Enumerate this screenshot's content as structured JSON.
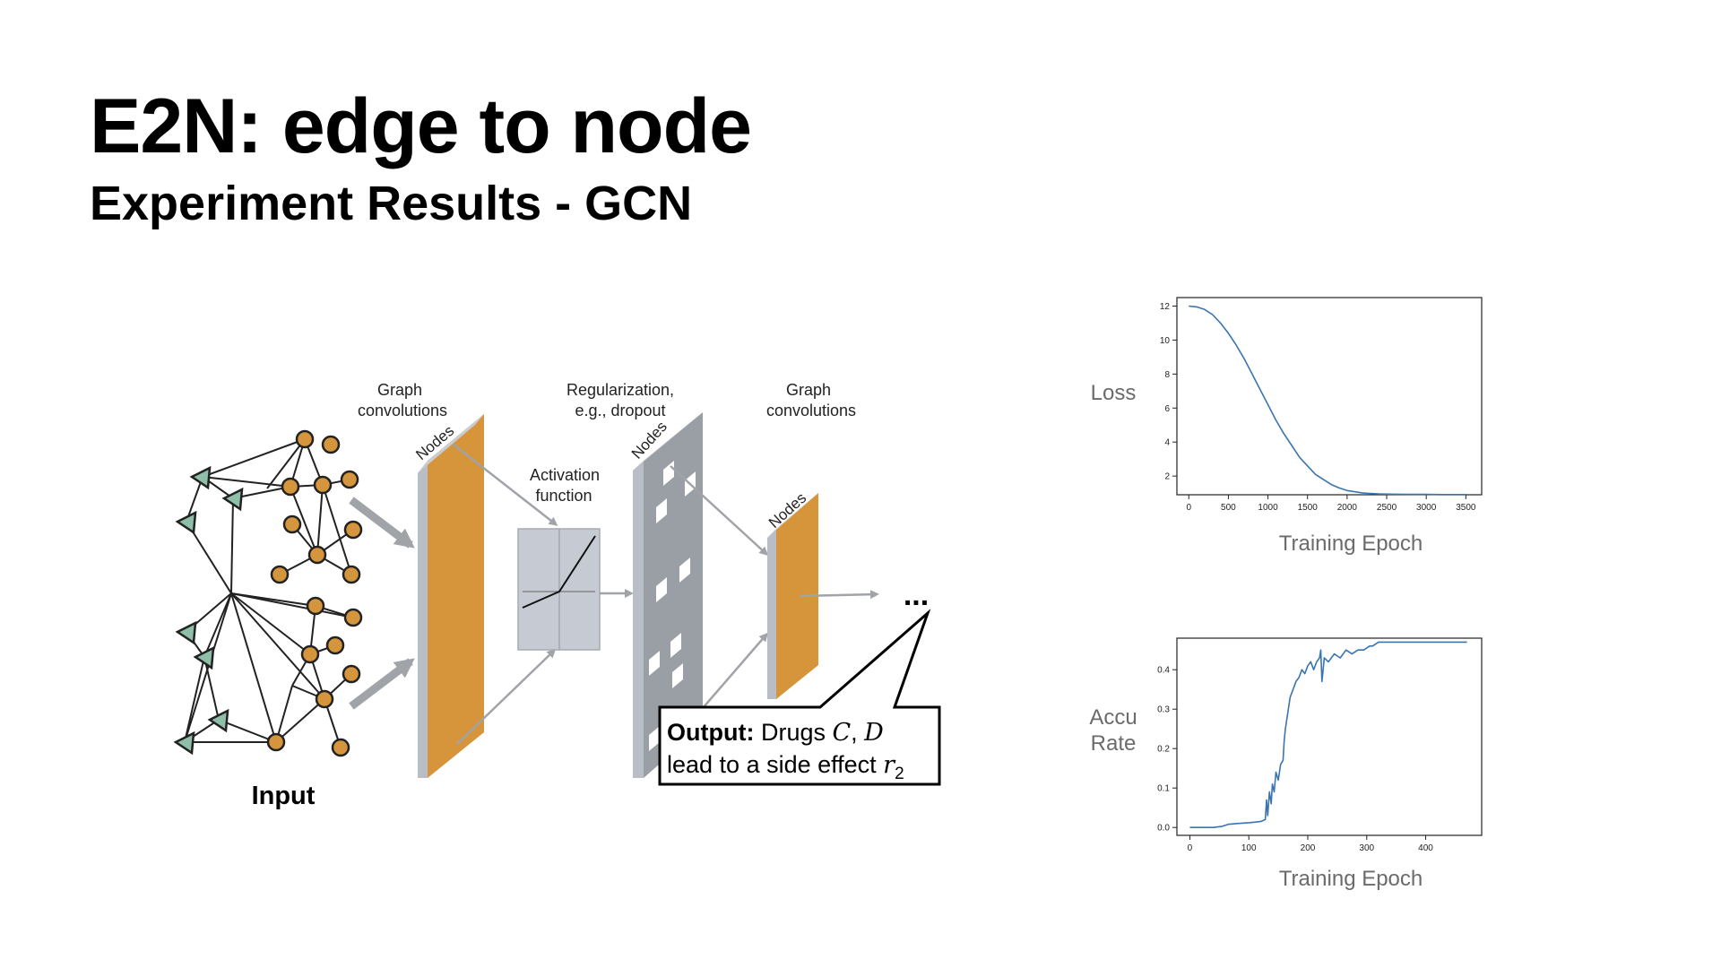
{
  "slide": {
    "title": "E2N: edge to node",
    "subtitle": "Experiment Results - GCN"
  },
  "diagram": {
    "graph_conv_1": [
      "Graph",
      "convolutions"
    ],
    "nodes_label": "Nodes",
    "activation": [
      "Activation",
      "function"
    ],
    "regularization": [
      "Regularization,",
      "e.g., dropout"
    ],
    "graph_conv_2": [
      "Graph",
      "convolutions"
    ],
    "input_label": "Input",
    "ellipsis": "...",
    "output_bold": "Output:",
    "output_line1_rest": " Drugs ",
    "drug_c": "C",
    "comma": ", ",
    "drug_d": "D",
    "output_line2": "lead to a side effect ",
    "effect_symbol": "r",
    "effect_subscript": "2",
    "colors": {
      "node": "#d4953c",
      "node_stroke": "#222222",
      "triangle": "#8fbfa8",
      "panel_orange": "#d6953a",
      "panel_gray": "#9a9ea5",
      "activation_box": "#c5cad3",
      "arrow": "#a0a3a8"
    }
  },
  "chart_data": [
    {
      "type": "line",
      "ylabel": "Loss",
      "xlabel": "Training Epoch",
      "xlim": [
        -150,
        3700
      ],
      "ylim": [
        0.9,
        12.5
      ],
      "xticks": [
        0,
        500,
        1000,
        1500,
        2000,
        2500,
        3000,
        3500
      ],
      "yticks": [
        2,
        4,
        6,
        8,
        10,
        12
      ],
      "line_color": "#3b75af",
      "series": [
        {
          "x": [
            0,
            100,
            200,
            300,
            400,
            500,
            600,
            700,
            800,
            900,
            1000,
            1100,
            1200,
            1300,
            1400,
            1500,
            1600,
            1700,
            1800,
            1900,
            2000,
            2200,
            2400,
            2600,
            2800,
            3000,
            3200,
            3500
          ],
          "y": [
            12.0,
            11.95,
            11.8,
            11.5,
            11.0,
            10.4,
            9.7,
            8.9,
            8.0,
            7.1,
            6.2,
            5.3,
            4.5,
            3.8,
            3.1,
            2.6,
            2.1,
            1.8,
            1.5,
            1.3,
            1.15,
            1.0,
            0.95,
            0.93,
            0.92,
            0.92,
            0.91,
            0.91
          ]
        }
      ]
    },
    {
      "type": "line",
      "ylabel": "Accu\nRate",
      "ylabel_lines": [
        "Accu",
        "Rate"
      ],
      "xlabel": "Training Epoch",
      "xlim": [
        -22,
        495
      ],
      "ylim": [
        -0.02,
        0.48
      ],
      "xticks": [
        0,
        100,
        200,
        300,
        400
      ],
      "yticks": [
        0.0,
        0.1,
        0.2,
        0.3,
        0.4
      ],
      "yticklabels": [
        "0.0",
        "0.1",
        "0.2",
        "0.3",
        "0.4"
      ],
      "line_color": "#3b75af",
      "series": [
        {
          "x": [
            0,
            20,
            40,
            55,
            65,
            80,
            100,
            120,
            128,
            130,
            132,
            135,
            138,
            140,
            143,
            146,
            150,
            154,
            158,
            160,
            162,
            165,
            168,
            170,
            175,
            180,
            185,
            190,
            195,
            200,
            205,
            210,
            215,
            220,
            222,
            224,
            228,
            235,
            245,
            255,
            265,
            275,
            285,
            295,
            305,
            310,
            320,
            340,
            380,
            420,
            470
          ],
          "y": [
            0.0,
            0.0,
            0.0,
            0.003,
            0.008,
            0.01,
            0.012,
            0.015,
            0.02,
            0.07,
            0.03,
            0.09,
            0.06,
            0.11,
            0.09,
            0.14,
            0.12,
            0.16,
            0.17,
            0.22,
            0.25,
            0.28,
            0.31,
            0.33,
            0.35,
            0.37,
            0.38,
            0.4,
            0.39,
            0.41,
            0.42,
            0.4,
            0.42,
            0.43,
            0.45,
            0.37,
            0.43,
            0.42,
            0.44,
            0.43,
            0.45,
            0.44,
            0.45,
            0.45,
            0.46,
            0.46,
            0.47,
            0.47,
            0.47,
            0.47,
            0.47
          ]
        }
      ]
    }
  ]
}
